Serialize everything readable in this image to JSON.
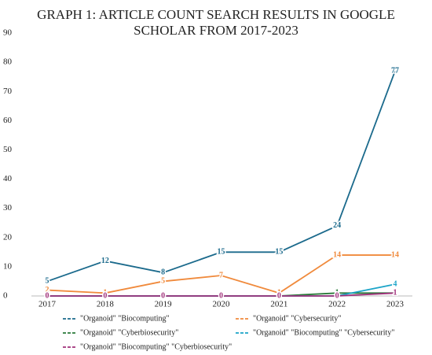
{
  "chart_data": {
    "type": "line",
    "title": [
      "GRAPH 1: ARTICLE COUNT SEARCH RESULTS IN GOOGLE",
      "SCHOLAR FROM 2017-2023"
    ],
    "categories": [
      "2017",
      "2018",
      "2019",
      "2020",
      "2021",
      "2022",
      "2023"
    ],
    "ylim": [
      0,
      90
    ],
    "yticks": [
      0,
      10,
      20,
      30,
      40,
      50,
      60,
      70,
      80,
      90
    ],
    "legend": "bottom",
    "series": [
      {
        "name": "\"Organoid\" \"Biocomputing\"",
        "color": "#1b6a8c",
        "values": [
          5,
          12,
          8,
          15,
          15,
          24,
          77
        ]
      },
      {
        "name": "\"Organoid\" \"Cybersecurity\"",
        "color": "#f08a3c",
        "values": [
          2,
          1,
          5,
          7,
          1,
          14,
          14
        ]
      },
      {
        "name": "\"Organoid\" \"Cyberbiosecurity\"",
        "color": "#2a7a3a",
        "values": [
          0,
          0,
          0,
          0,
          0,
          1,
          1
        ]
      },
      {
        "name": "\"Organoid\" \"Biocomputing\" \"Cybersecurity\"",
        "color": "#1ba4c8",
        "values": [
          0,
          0,
          0,
          0,
          0,
          0,
          4
        ]
      },
      {
        "name": "\"Organoid\" \"Biocomputing\" \"Cyberbiosecurity\"",
        "color": "#a0307a",
        "values": [
          0,
          0,
          0,
          0,
          0,
          0,
          1
        ]
      }
    ]
  }
}
